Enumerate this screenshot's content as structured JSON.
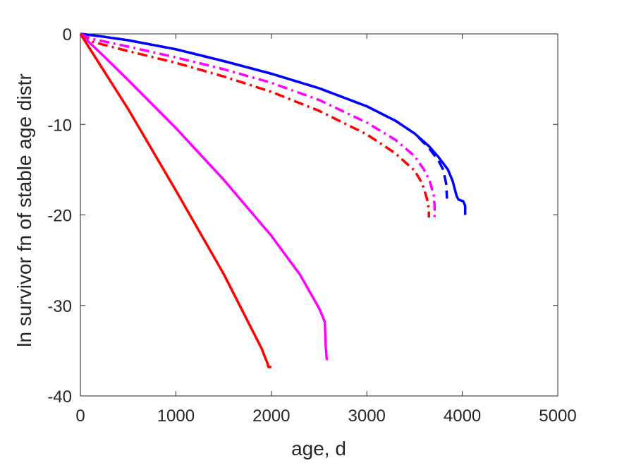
{
  "chart_data": {
    "type": "line",
    "title": "",
    "xlabel": "age, d",
    "ylabel": "ln survivor fn of stable age distr",
    "xlim": [
      0,
      5000
    ],
    "ylim": [
      -40,
      0
    ],
    "xticks": [
      0,
      1000,
      2000,
      3000,
      4000,
      5000
    ],
    "yticks": [
      0,
      -10,
      -20,
      -30,
      -40
    ],
    "xtick_labels": [
      "0",
      "1000",
      "2000",
      "3000",
      "4000",
      "5000"
    ],
    "ytick_labels": [
      "0",
      "-10",
      "-20",
      "-30",
      "-40"
    ],
    "grid": false,
    "legend": "none",
    "series": [
      {
        "color": "#0000ff",
        "style": "solid",
        "points": [
          [
            0,
            0
          ],
          [
            200,
            -0.25
          ],
          [
            500,
            -0.7
          ],
          [
            1000,
            -1.7
          ],
          [
            1500,
            -3.0
          ],
          [
            2000,
            -4.4
          ],
          [
            2500,
            -6.0
          ],
          [
            3000,
            -8.0
          ],
          [
            3300,
            -9.6
          ],
          [
            3500,
            -11.0
          ],
          [
            3650,
            -12.4
          ],
          [
            3750,
            -13.6
          ],
          [
            3850,
            -15.0
          ],
          [
            3900,
            -16.3
          ],
          [
            3940,
            -17.9
          ],
          [
            3960,
            -18.3
          ],
          [
            4010,
            -18.5
          ],
          [
            4030,
            -19.0
          ],
          [
            4030,
            -20.0
          ]
        ]
      },
      {
        "color": "#0000ff",
        "style": "dashed",
        "points": [
          [
            0,
            0
          ],
          [
            200,
            -0.25
          ],
          [
            500,
            -0.7
          ],
          [
            1000,
            -1.7
          ],
          [
            1500,
            -3.0
          ],
          [
            2000,
            -4.4
          ],
          [
            2500,
            -6.0
          ],
          [
            3000,
            -8.0
          ],
          [
            3300,
            -9.6
          ],
          [
            3500,
            -11.0
          ],
          [
            3650,
            -12.6
          ],
          [
            3750,
            -14.0
          ],
          [
            3800,
            -15.0
          ],
          [
            3830,
            -16.5
          ],
          [
            3840,
            -18.2
          ]
        ]
      },
      {
        "color": "#ff00ff",
        "style": "dashdot",
        "points": [
          [
            0,
            0
          ],
          [
            100,
            -0.5
          ],
          [
            500,
            -1.4
          ],
          [
            1000,
            -2.6
          ],
          [
            1500,
            -3.9
          ],
          [
            2000,
            -5.4
          ],
          [
            2500,
            -7.3
          ],
          [
            3000,
            -9.8
          ],
          [
            3300,
            -11.7
          ],
          [
            3500,
            -13.5
          ],
          [
            3600,
            -15.0
          ],
          [
            3660,
            -16.3
          ],
          [
            3700,
            -17.8
          ],
          [
            3710,
            -19.0
          ],
          [
            3710,
            -20.3
          ]
        ]
      },
      {
        "color": "#ff0000",
        "style": "dashdot",
        "points": [
          [
            0,
            0
          ],
          [
            100,
            -0.8
          ],
          [
            500,
            -1.9
          ],
          [
            1000,
            -3.2
          ],
          [
            1500,
            -4.7
          ],
          [
            2000,
            -6.4
          ],
          [
            2500,
            -8.5
          ],
          [
            3000,
            -11.1
          ],
          [
            3300,
            -13.2
          ],
          [
            3500,
            -15.1
          ],
          [
            3580,
            -16.5
          ],
          [
            3630,
            -18.2
          ],
          [
            3650,
            -19.3
          ],
          [
            3650,
            -20.3
          ]
        ]
      },
      {
        "color": "#ff00ff",
        "style": "solid",
        "points": [
          [
            0,
            0
          ],
          [
            250,
            -2.5
          ],
          [
            500,
            -5.1
          ],
          [
            1000,
            -10.4
          ],
          [
            1500,
            -16.1
          ],
          [
            2000,
            -22.3
          ],
          [
            2300,
            -26.6
          ],
          [
            2500,
            -30.3
          ],
          [
            2560,
            -31.8
          ],
          [
            2570,
            -34.6
          ],
          [
            2580,
            -35.9
          ],
          [
            2590,
            -36.0
          ]
        ]
      },
      {
        "color": "#ff0000",
        "style": "solid",
        "points": [
          [
            0,
            0
          ],
          [
            500,
            -8.3
          ],
          [
            1000,
            -17.3
          ],
          [
            1500,
            -26.5
          ],
          [
            1900,
            -34.8
          ],
          [
            1940,
            -35.9
          ],
          [
            1960,
            -36.4
          ],
          [
            1970,
            -36.8
          ],
          [
            2000,
            -36.8
          ]
        ]
      }
    ]
  }
}
